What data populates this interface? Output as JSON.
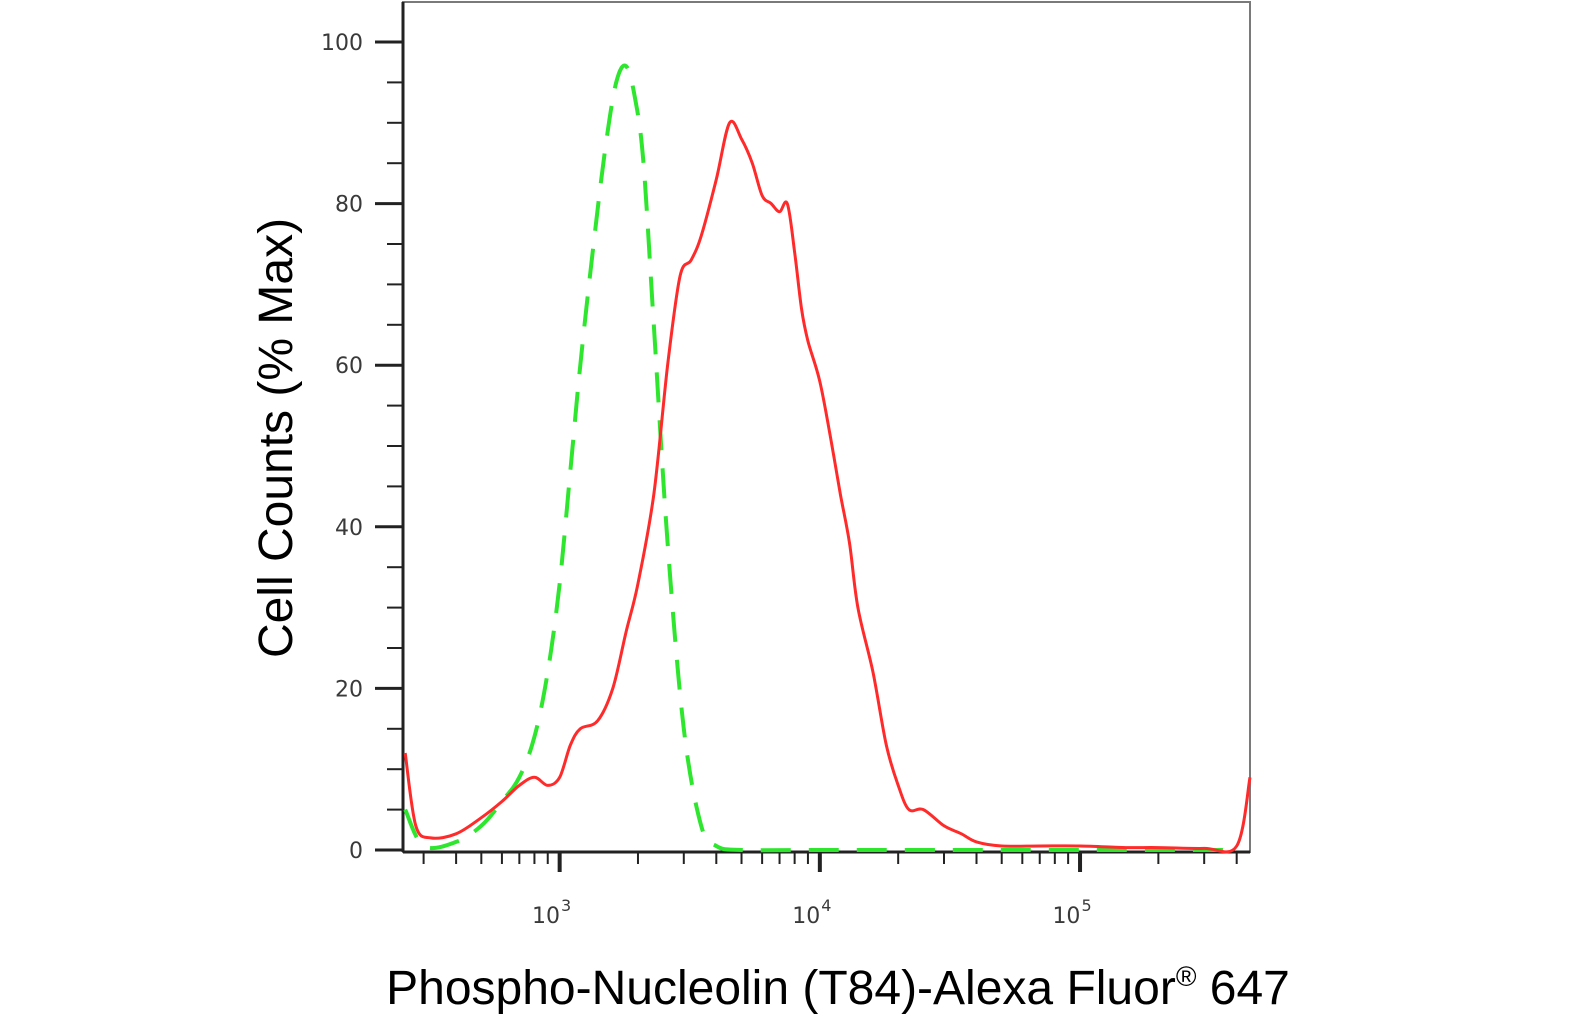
{
  "chart_data": {
    "type": "line",
    "xscale": "log",
    "xlim": [
      250,
      450000
    ],
    "ylim": [
      0,
      100
    ],
    "xlabel": {
      "text": "Phospho-Nucleolin (T84)-Alexa Fluor",
      "sup": "®",
      "suffix": " 647"
    },
    "ylabel": "Cell Counts (% Max)",
    "yticks": [
      {
        "value": 0,
        "label": "0"
      },
      {
        "value": 20,
        "label": "20"
      },
      {
        "value": 40,
        "label": "40"
      },
      {
        "value": 60,
        "label": "60"
      },
      {
        "value": 80,
        "label": "80"
      },
      {
        "value": 100,
        "label": "100"
      }
    ],
    "xticks": [
      {
        "value": 1000,
        "base": "10",
        "exp": "3"
      },
      {
        "value": 10000,
        "base": "10",
        "exp": "4"
      },
      {
        "value": 100000,
        "base": "10",
        "exp": "5"
      }
    ],
    "grid": false,
    "legend": "none",
    "series": [
      {
        "color": "#2ee62e",
        "dash": true,
        "x": [
          255,
          300,
          400,
          500,
          600,
          700,
          800,
          900,
          1000,
          1100,
          1200,
          1350,
          1500,
          1650,
          1800,
          1950,
          2100,
          2300,
          2600,
          3000,
          3500,
          4000,
          5000,
          10000,
          30000,
          100000,
          400000
        ],
        "y": [
          5,
          0.5,
          1,
          3,
          6,
          9,
          14,
          22,
          33,
          47,
          60,
          75,
          87,
          95,
          97,
          93,
          85,
          65,
          38,
          15,
          3,
          0.5,
          0,
          0,
          0,
          0,
          0
        ]
      },
      {
        "color": "#ff2a2a",
        "dash": false,
        "x": [
          255,
          280,
          320,
          400,
          500,
          600,
          700,
          800,
          900,
          1000,
          1100,
          1200,
          1400,
          1600,
          1800,
          2000,
          2300,
          2600,
          2900,
          3200,
          3500,
          4000,
          4500,
          5000,
          5500,
          6000,
          6500,
          7000,
          7500,
          8000,
          8500,
          9000,
          10000,
          11000,
          12000,
          13000,
          14000,
          16000,
          18000,
          20000,
          22000,
          25000,
          30000,
          35000,
          40000,
          50000,
          70000,
          100000,
          150000,
          200000,
          300000,
          400000,
          450000
        ],
        "y": [
          12,
          3,
          1.5,
          2,
          4,
          6,
          8,
          9,
          8,
          9,
          13,
          15,
          16,
          20,
          27,
          33,
          44,
          60,
          71,
          73,
          76,
          83,
          90,
          88,
          85,
          81,
          80,
          79,
          80,
          74,
          67,
          63,
          58,
          51,
          44,
          38,
          30,
          22,
          13,
          8,
          5,
          5,
          3,
          2,
          1,
          0.5,
          0.5,
          0.5,
          0.3,
          0.3,
          0.2,
          0.5,
          9
        ]
      }
    ]
  }
}
